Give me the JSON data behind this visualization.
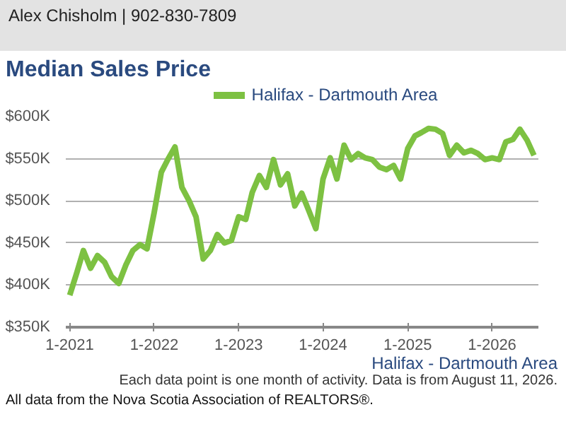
{
  "chart_data": {
    "type": "line",
    "title": "Median Sales Price",
    "annotations": [
      "Alex Chisholm | 902-830-7809",
      "Halifax - Dartmouth Area",
      "Each data point is one month of activity. Data is from August 11, 2026.",
      "All data from the Nova Scotia Association of REALTORS®."
    ],
    "x": [
      "2021-01",
      "2021-02",
      "2021-03",
      "2021-04",
      "2021-05",
      "2021-06",
      "2021-07",
      "2021-08",
      "2021-09",
      "2021-10",
      "2021-11",
      "2021-12",
      "2022-01",
      "2022-02",
      "2022-03",
      "2022-04",
      "2022-05",
      "2022-06",
      "2022-07",
      "2022-08",
      "2022-09",
      "2022-10",
      "2022-11",
      "2022-12",
      "2023-01",
      "2023-02",
      "2023-03",
      "2023-04",
      "2023-05",
      "2023-06",
      "2023-07",
      "2023-08",
      "2023-09",
      "2023-10",
      "2023-11",
      "2023-12",
      "2024-01",
      "2024-02",
      "2024-03",
      "2024-04",
      "2024-05",
      "2024-06",
      "2024-07",
      "2024-08",
      "2024-09",
      "2024-10",
      "2024-11",
      "2024-12",
      "2025-01",
      "2025-02",
      "2025-03",
      "2025-04",
      "2025-05",
      "2025-06",
      "2025-07",
      "2025-08",
      "2025-09",
      "2025-10",
      "2025-11",
      "2025-12",
      "2026-01",
      "2026-02",
      "2026-03",
      "2026-04",
      "2026-05",
      "2026-06",
      "2026-07"
    ],
    "series": [
      {
        "name": "Halifax - Dartmouth Area",
        "color": "#7dc142",
        "values": [
          388000,
          415000,
          441000,
          420000,
          435000,
          427000,
          410000,
          402000,
          424000,
          441000,
          448000,
          443000,
          486000,
          534000,
          549000,
          564000,
          516000,
          500000,
          481000,
          431000,
          441000,
          460000,
          450000,
          453000,
          481000,
          478000,
          510000,
          530000,
          516000,
          549000,
          519000,
          532000,
          494000,
          509000,
          488000,
          467000,
          526000,
          551000,
          526000,
          566000,
          549000,
          556000,
          551000,
          549000,
          540000,
          537000,
          542000,
          526000,
          562000,
          577000,
          581000,
          586000,
          585000,
          580000,
          554000,
          566000,
          557000,
          560000,
          556000,
          549000,
          551000,
          549000,
          570000,
          573000,
          585000,
          572000,
          554000
        ]
      }
    ],
    "xlim": [
      "2020-12-15",
      "2026-07-20"
    ],
    "xticks": [
      {
        "value": "2021-01",
        "label": "1-2021"
      },
      {
        "value": "2022-01",
        "label": "1-2022"
      },
      {
        "value": "2023-01",
        "label": "1-2023"
      },
      {
        "value": "2024-01",
        "label": "1-2024"
      },
      {
        "value": "2025-01",
        "label": "1-2025"
      },
      {
        "value": "2026-01",
        "label": "1-2026"
      }
    ],
    "ylim": [
      350000,
      600000
    ],
    "yticks": [
      {
        "value": 350000,
        "label": "$350K"
      },
      {
        "value": 400000,
        "label": "$400K"
      },
      {
        "value": 450000,
        "label": "$450K"
      },
      {
        "value": 500000,
        "label": "$500K"
      },
      {
        "value": 550000,
        "label": "$550K"
      },
      {
        "value": 600000,
        "label": "$600K"
      }
    ],
    "grid": "y",
    "legend": "top",
    "marker": "none",
    "line_style": "solid"
  }
}
